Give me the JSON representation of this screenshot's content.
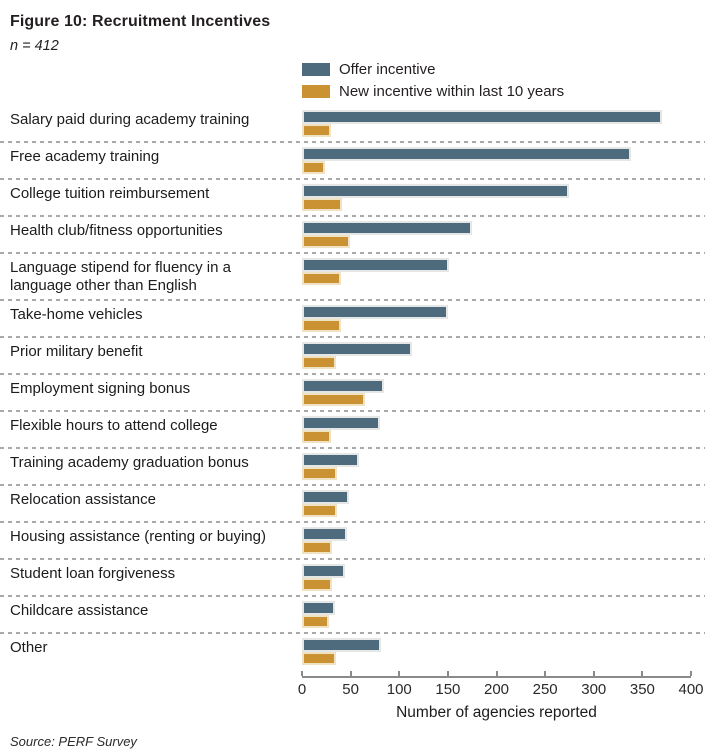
{
  "figure": {
    "title": "Figure 10: Recruitment Incentives",
    "n_label": "n = 412",
    "source": "Source: PERF Survey"
  },
  "legend": [
    {
      "label": "Offer incentive",
      "color": "#4e6a7d"
    },
    {
      "label": "New incentive within last 10 years",
      "color": "#cb9233"
    }
  ],
  "chart_data": {
    "type": "bar",
    "orientation": "horizontal",
    "title": "Figure 10: Recruitment Incentives",
    "subtitle": "n = 412",
    "xlabel": "Number of agencies reported",
    "ylabel": "",
    "xlim": [
      0,
      400
    ],
    "xticks": [
      0,
      50,
      100,
      150,
      200,
      250,
      300,
      350,
      400
    ],
    "grid": "dashed-row-separators",
    "legend_position": "top",
    "categories": [
      "Salary paid during academy training",
      "Free academy training",
      "College tuition reimbursement",
      "Health club/fitness opportunities",
      "Language stipend for fluency in a language other than English",
      "Take-home vehicles",
      "Prior military benefit",
      "Employment signing bonus",
      "Flexible hours to attend college",
      "Training academy graduation bonus",
      "Relocation assistance",
      "Housing assistance (renting or buying)",
      "Student loan forgiveness",
      "Childcare assistance",
      "Other"
    ],
    "series": [
      {
        "name": "Offer incentive",
        "color": "#4e6a7d",
        "values": [
          370,
          338,
          275,
          175,
          151,
          150,
          113,
          84,
          80,
          59,
          48,
          46,
          44,
          34,
          81
        ]
      },
      {
        "name": "New incentive within last 10 years",
        "color": "#cb9233",
        "values": [
          30,
          24,
          41,
          49,
          40,
          40,
          35,
          65,
          30,
          36,
          36,
          31,
          31,
          28,
          35
        ]
      }
    ]
  }
}
